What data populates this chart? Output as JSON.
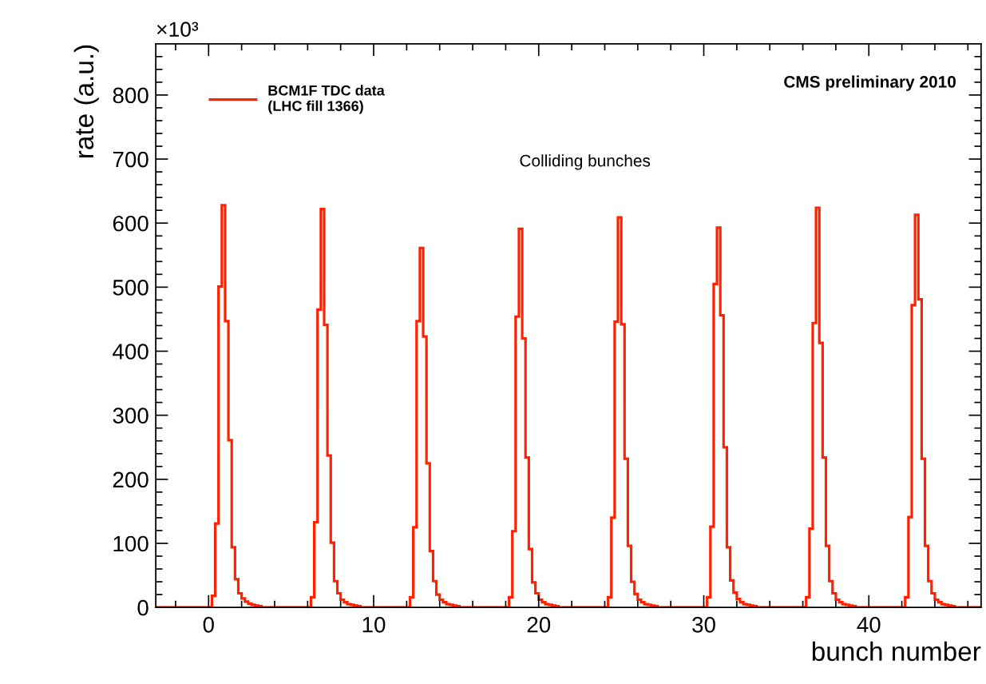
{
  "chart_data": {
    "type": "histogram",
    "xlabel": "bunch number",
    "ylabel": "rate (a.u.)",
    "annotations": [
      "CMS preliminary 2010",
      "Colliding bunches",
      "×10³"
    ],
    "bins": [
      -3.2,
      -3,
      -2.8,
      -2.6,
      -2.4,
      -2.2,
      -2,
      -1.8,
      -1.6,
      -1.4,
      -1.2,
      -1,
      -0.8,
      -0.6,
      -0.4,
      -0.2,
      0,
      0.2,
      0.4,
      0.6,
      0.8,
      1,
      1.2,
      1.4,
      1.6,
      1.8,
      2,
      2.2,
      2.4,
      2.6,
      2.8,
      3,
      3.2,
      3.4,
      3.6,
      3.8,
      4,
      4.2,
      4.4,
      4.6,
      4.8,
      5,
      5.2,
      5.4,
      5.6,
      5.8,
      6,
      6.2,
      6.4,
      6.6,
      6.8,
      7,
      7.2,
      7.4,
      7.6,
      7.8,
      8,
      8.2,
      8.4,
      8.6,
      8.8,
      9,
      9.2,
      9.4,
      9.6,
      9.8,
      10,
      10.2,
      10.4,
      10.6,
      10.8,
      11,
      11.2,
      11.4,
      11.6,
      11.8,
      12,
      12.2,
      12.4,
      12.6,
      12.8,
      13,
      13.2,
      13.4,
      13.6,
      13.8,
      14,
      14.2,
      14.4,
      14.6,
      14.8,
      15,
      15.2,
      15.4,
      15.6,
      15.8,
      16,
      16.2,
      16.4,
      16.6,
      16.8,
      17,
      17.2,
      17.4,
      17.6,
      17.8,
      18,
      18.2,
      18.4,
      18.6,
      18.8,
      19,
      19.2,
      19.4,
      19.6,
      19.8,
      20,
      20.2,
      20.4,
      20.6,
      20.8,
      21,
      21.2,
      21.4,
      21.6,
      21.8,
      22,
      22.2,
      22.4,
      22.6,
      22.8,
      23,
      23.2,
      23.4,
      23.6,
      23.8,
      24,
      24.2,
      24.4,
      24.6,
      24.8,
      25,
      25.2,
      25.4,
      25.6,
      25.8,
      26,
      26.2,
      26.4,
      26.6,
      26.8,
      27,
      27.2,
      27.4,
      27.6,
      27.8,
      28,
      28.2,
      28.4,
      28.6,
      28.8,
      29,
      29.2,
      29.4,
      29.6,
      29.8,
      30,
      30.2,
      30.4,
      30.6,
      30.8,
      31,
      31.2,
      31.4,
      31.6,
      31.8,
      32,
      32.2,
      32.4,
      32.6,
      32.8,
      33,
      33.2,
      33.4,
      33.6,
      33.8,
      34,
      34.2,
      34.4,
      34.6,
      34.8,
      35,
      35.2,
      35.4,
      35.6,
      35.8,
      36,
      36.2,
      36.4,
      36.6,
      36.8,
      37,
      37.2,
      37.4,
      37.6,
      37.8,
      38,
      38.2,
      38.4,
      38.6,
      38.8,
      39,
      39.2,
      39.4,
      39.6,
      39.8,
      40,
      40.2,
      40.4,
      40.6,
      40.8,
      41,
      41.2,
      41.4,
      41.6,
      41.8,
      42,
      42.2,
      42.4,
      42.6,
      42.8,
      43,
      43.2,
      43.4,
      43.6,
      43.8,
      44,
      44.2,
      44.4,
      44.6,
      44.8,
      45,
      45.2,
      45.4,
      45.6,
      45.8,
      46,
      46.2,
      46.4,
      46.6,
      46.8
    ],
    "series": [
      {
        "name": "BCM1F TDC data\n(LHC fill 1366)",
        "color": "#ff2200",
        "values": [
          0,
          0,
          0,
          0,
          0,
          0,
          0,
          0,
          0,
          0,
          0,
          0,
          0,
          0,
          0,
          0,
          0,
          18,
          131,
          501,
          628,
          447,
          261,
          94,
          44,
          22,
          14,
          9,
          6,
          4,
          3,
          2,
          0,
          0,
          0,
          0,
          0,
          0,
          0,
          0,
          0,
          0,
          0,
          0,
          0,
          0,
          0,
          16,
          133,
          465,
          622,
          441,
          237,
          101,
          41,
          22,
          12,
          8,
          5,
          4,
          3,
          2,
          0,
          0,
          0,
          0,
          0,
          0,
          0,
          0,
          0,
          0,
          0,
          0,
          0,
          0,
          0,
          16,
          125,
          447,
          561,
          423,
          225,
          88,
          41,
          20,
          12,
          8,
          5,
          4,
          3,
          2,
          0,
          0,
          0,
          0,
          0,
          0,
          0,
          0,
          0,
          0,
          0,
          0,
          0,
          0,
          0,
          16,
          119,
          454,
          591,
          420,
          234,
          91,
          39,
          22,
          12,
          8,
          5,
          4,
          3,
          2,
          0,
          0,
          0,
          0,
          0,
          0,
          0,
          0,
          0,
          0,
          0,
          0,
          0,
          0,
          0,
          16,
          140,
          446,
          609,
          442,
          232,
          96,
          40,
          21,
          12,
          8,
          5,
          4,
          3,
          2,
          0,
          0,
          0,
          0,
          0,
          0,
          0,
          0,
          0,
          0,
          0,
          0,
          0,
          0,
          0,
          16,
          126,
          505,
          593,
          456,
          250,
          94,
          42,
          23,
          13,
          8,
          5,
          4,
          3,
          2,
          0,
          0,
          0,
          0,
          0,
          0,
          0,
          0,
          0,
          0,
          0,
          0,
          0,
          0,
          0,
          16,
          123,
          444,
          624,
          413,
          234,
          96,
          41,
          22,
          12,
          8,
          5,
          4,
          3,
          2,
          0,
          0,
          0,
          0,
          0,
          0,
          0,
          0,
          0,
          0,
          0,
          0,
          0,
          0,
          0,
          16,
          141,
          472,
          613,
          481,
          232,
          96,
          41,
          22,
          12,
          8,
          5,
          4,
          3,
          2,
          0,
          0,
          0,
          0,
          0,
          0,
          0,
          0
        ]
      }
    ],
    "xlim": [
      -3.2,
      46.8
    ],
    "ylim": [
      0,
      880
    ],
    "xticks": [
      {
        "value": -2,
        "label": null
      },
      0,
      {
        "value": 2,
        "label": null
      },
      {
        "value": 4,
        "label": null
      },
      {
        "value": 6,
        "label": null
      },
      {
        "value": 8,
        "label": null
      },
      10,
      {
        "value": 12,
        "label": null
      },
      {
        "value": 14,
        "label": null
      },
      {
        "value": 16,
        "label": null
      },
      {
        "value": 18,
        "label": null
      },
      20,
      {
        "value": 22,
        "label": null
      },
      {
        "value": 24,
        "label": null
      },
      {
        "value": 26,
        "label": null
      },
      {
        "value": 28,
        "label": null
      },
      30,
      {
        "value": 32,
        "label": null
      },
      {
        "value": 34,
        "label": null
      },
      {
        "value": 36,
        "label": null
      },
      {
        "value": 38,
        "label": null
      },
      40,
      {
        "value": 42,
        "label": null
      },
      {
        "value": 44,
        "label": null
      },
      {
        "value": 46,
        "label": null
      }
    ],
    "yticks": [
      0,
      {
        "value": 20,
        "label": null
      },
      {
        "value": 40,
        "label": null
      },
      {
        "value": 60,
        "label": null
      },
      {
        "value": 80,
        "label": null
      },
      100,
      {
        "value": 120,
        "label": null
      },
      {
        "value": 140,
        "label": null
      },
      {
        "value": 160,
        "label": null
      },
      {
        "value": 180,
        "label": null
      },
      200,
      {
        "value": 220,
        "label": null
      },
      {
        "value": 240,
        "label": null
      },
      {
        "value": 260,
        "label": null
      },
      {
        "value": 280,
        "label": null
      },
      300,
      {
        "value": 320,
        "label": null
      },
      {
        "value": 340,
        "label": null
      },
      {
        "value": 360,
        "label": null
      },
      {
        "value": 380,
        "label": null
      },
      400,
      {
        "value": 420,
        "label": null
      },
      {
        "value": 440,
        "label": null
      },
      {
        "value": 460,
        "label": null
      },
      {
        "value": 480,
        "label": null
      },
      500,
      {
        "value": 520,
        "label": null
      },
      {
        "value": 540,
        "label": null
      },
      {
        "value": 560,
        "label": null
      },
      {
        "value": 580,
        "label": null
      },
      600,
      {
        "value": 620,
        "label": null
      },
      {
        "value": 640,
        "label": null
      },
      {
        "value": 660,
        "label": null
      },
      {
        "value": 680,
        "label": null
      },
      700,
      {
        "value": 720,
        "label": null
      },
      {
        "value": 740,
        "label": null
      },
      {
        "value": 760,
        "label": null
      },
      {
        "value": 780,
        "label": null
      },
      800,
      {
        "value": 820,
        "label": null
      },
      {
        "value": 840,
        "label": null
      },
      {
        "value": 860,
        "label": null
      }
    ],
    "legend": "top left",
    "grid": false
  }
}
